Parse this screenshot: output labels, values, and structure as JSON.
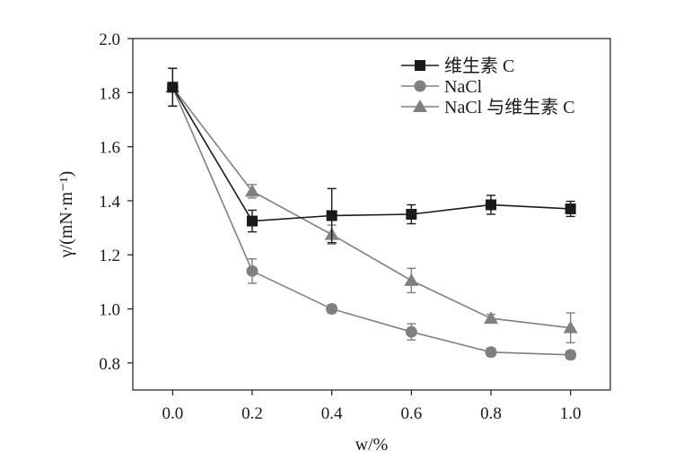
{
  "chart_data": {
    "type": "line",
    "xlabel": "w/%",
    "ylabel": "γ/(mN·m⁻¹)",
    "xlim": [
      -0.1,
      1.1
    ],
    "ylim": [
      0.7,
      2.0
    ],
    "x_ticks": [
      0.0,
      0.2,
      0.4,
      0.6,
      0.8,
      1.0
    ],
    "x_tick_labels": [
      "0.0",
      "0.2",
      "0.4",
      "0.6",
      "0.8",
      "1.0"
    ],
    "y_ticks": [
      0.8,
      1.0,
      1.2,
      1.4,
      1.6,
      1.8,
      2.0
    ],
    "y_tick_labels": [
      "0.8",
      "1.0",
      "1.2",
      "1.4",
      "1.6",
      "1.8",
      "2.0"
    ],
    "grid": false,
    "legend_position": "top-right",
    "x": [
      0.0,
      0.2,
      0.4,
      0.6,
      0.8,
      1.0
    ],
    "series": [
      {
        "name": "维生素 C",
        "marker": "square",
        "color": "#1a1a1a",
        "values": [
          1.82,
          1.325,
          1.345,
          1.35,
          1.385,
          1.37
        ],
        "errors": [
          0.07,
          0.04,
          0.1,
          0.035,
          0.035,
          0.028
        ]
      },
      {
        "name": "NaCl",
        "marker": "circle",
        "color": "#808080",
        "values": [
          1.82,
          1.14,
          1.0,
          0.915,
          0.84,
          0.83
        ],
        "errors": [
          0.07,
          0.045,
          0.015,
          0.03,
          0.015,
          0.015
        ]
      },
      {
        "name": "NaCl 与维生素 C",
        "marker": "triangle",
        "color": "#808080",
        "values": [
          1.82,
          1.435,
          1.275,
          1.105,
          0.965,
          0.93
        ],
        "errors": [
          0.07,
          0.025,
          0.035,
          0.045,
          0.015,
          0.055
        ]
      }
    ]
  }
}
